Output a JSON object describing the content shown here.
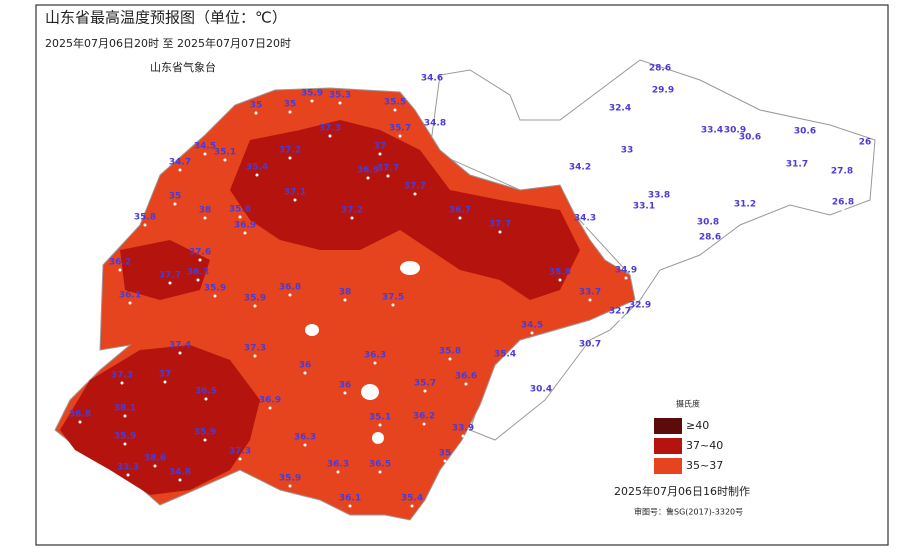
{
  "header": {
    "title": "山东省最高温度预报图（单位：℃）",
    "period": "2025年07月06日20时  至  2025年07月07日20时",
    "agency": "山东省气象台"
  },
  "legend": {
    "title": "摄氏度",
    "items": [
      {
        "label": "≥40",
        "color": "#5c0b0b"
      },
      {
        "label": "37~40",
        "color": "#b5140e"
      },
      {
        "label": "35~37",
        "color": "#e6441e"
      }
    ]
  },
  "footer": {
    "made": "2025年07月06日16时制作",
    "approval": "审图号：鲁SG(2017)-3320号"
  },
  "station_values": [
    34.6,
    28.6,
    29.9,
    32.4,
    33.4,
    30.9,
    30.6,
    30.6,
    26,
    35.3,
    35.9,
    35.5,
    35,
    35,
    34.8,
    35.7,
    37.3,
    34.5,
    35.1,
    34.7,
    35.4,
    37.2,
    37,
    33,
    31.7,
    27.8,
    34.2,
    36.9,
    37.7,
    37.7,
    37.1,
    33.8,
    33.1,
    31.2,
    26.8,
    35,
    35.6,
    38,
    35.8,
    37.2,
    36.7,
    37.7,
    34.3,
    30.8,
    28.6,
    36.9,
    36.2,
    37.6,
    37.7,
    36.3,
    34.9,
    35.8,
    33.7,
    36.1,
    35.9,
    35.9,
    36.8,
    38,
    37.5,
    32.9,
    32.7,
    34.5,
    35.4,
    30.7,
    35.8,
    37.4,
    37.3,
    36.3,
    36,
    37.3,
    37,
    36.6,
    35.7,
    36,
    30.4,
    36.8,
    38.1,
    36.5,
    36.9,
    35.1,
    36.2,
    33.9,
    35.9,
    35.9,
    36.3,
    35,
    38.6,
    37.3,
    33.3,
    34.8,
    36.3,
    36.5,
    36.1,
    35.4,
    35.9
  ]
}
